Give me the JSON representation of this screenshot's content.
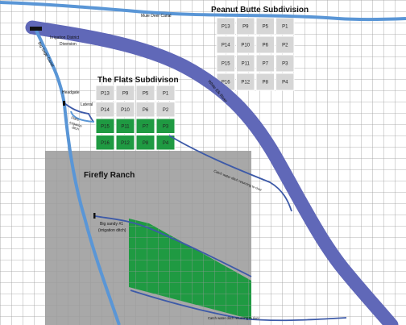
{
  "map": {
    "subdivisions": {
      "peanut_butte": {
        "title": "Peanut Butte Subdivision",
        "parcels": [
          [
            "P13",
            "P9",
            "P5",
            "P1"
          ],
          [
            "P14",
            "P10",
            "P6",
            "P2"
          ],
          [
            "P15",
            "P11",
            "P7",
            "P3"
          ],
          [
            "P16",
            "P12",
            "P8",
            "P4"
          ]
        ]
      },
      "the_flats": {
        "title": "The Flats Subdivison",
        "parcels": [
          [
            "P13",
            "P9",
            "P5",
            "P1"
          ],
          [
            "P14",
            "P10",
            "P6",
            "P2"
          ],
          [
            "P15",
            "P11",
            "P7",
            "P3"
          ],
          [
            "P16",
            "P12",
            "P8",
            "P4"
          ]
        ],
        "irrigated_rows": [
          2,
          3
        ]
      }
    },
    "labels": {
      "mule_deer_canal": "Mule Deer Canal",
      "irrigation_district_diversion_1": "Irrigation District",
      "irrigation_district_diversion_2": "Diversion",
      "big_sage_canal": "Big Sage Canal",
      "headgate": "Headgate",
      "lateral": "Lateral",
      "flats_irrigation_ditch_1": "Flat's",
      "flats_irrigation_ditch_2": "irrigation",
      "flats_irrigation_ditch_3": "ditch",
      "white_elk_river": "White Elk River",
      "catch_water_ditch_1": "Catch water ditch returning to river",
      "firefly_ranch": "Firefly Ranch",
      "big_sandy_1": "Big sandy #1",
      "big_sandy_2": "(irrigation ditch)",
      "catch_water_ditch_2": "Catch water ditch returning to river"
    },
    "colors": {
      "river": "#6068b8",
      "canal": "#5a96d6",
      "ditch": "#3d5aa8",
      "irrigated": "#1f9a42",
      "ranch": "#a8a8a8",
      "parcel_fill": "#d6d6d6",
      "grid": "#9a9a9a"
    }
  }
}
